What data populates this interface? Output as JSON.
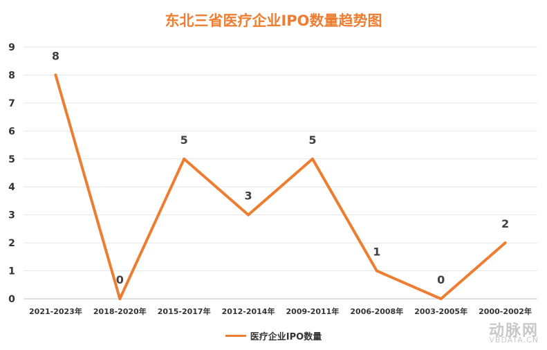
{
  "chart_data": {
    "type": "line",
    "title": "东北三省医疗企业IPO数量趋势图",
    "categories": [
      "2021-2023年",
      "2018-2020年",
      "2015-2017年",
      "2012-2014年",
      "2009-2011年",
      "2006-2008年",
      "2003-2005年",
      "2000-2002年"
    ],
    "series": [
      {
        "name": "医疗企业IPO数量",
        "values": [
          8,
          0,
          5,
          3,
          5,
          1,
          0,
          2
        ],
        "color": "#ED7D31"
      }
    ],
    "ylim": [
      0,
      9
    ],
    "yticks": [
      0,
      1,
      2,
      3,
      4,
      5,
      6,
      7,
      8,
      9
    ],
    "grid": true,
    "legend_position": "bottom"
  },
  "watermark": {
    "text": "动脉网",
    "url": "VBDATA.CN"
  }
}
